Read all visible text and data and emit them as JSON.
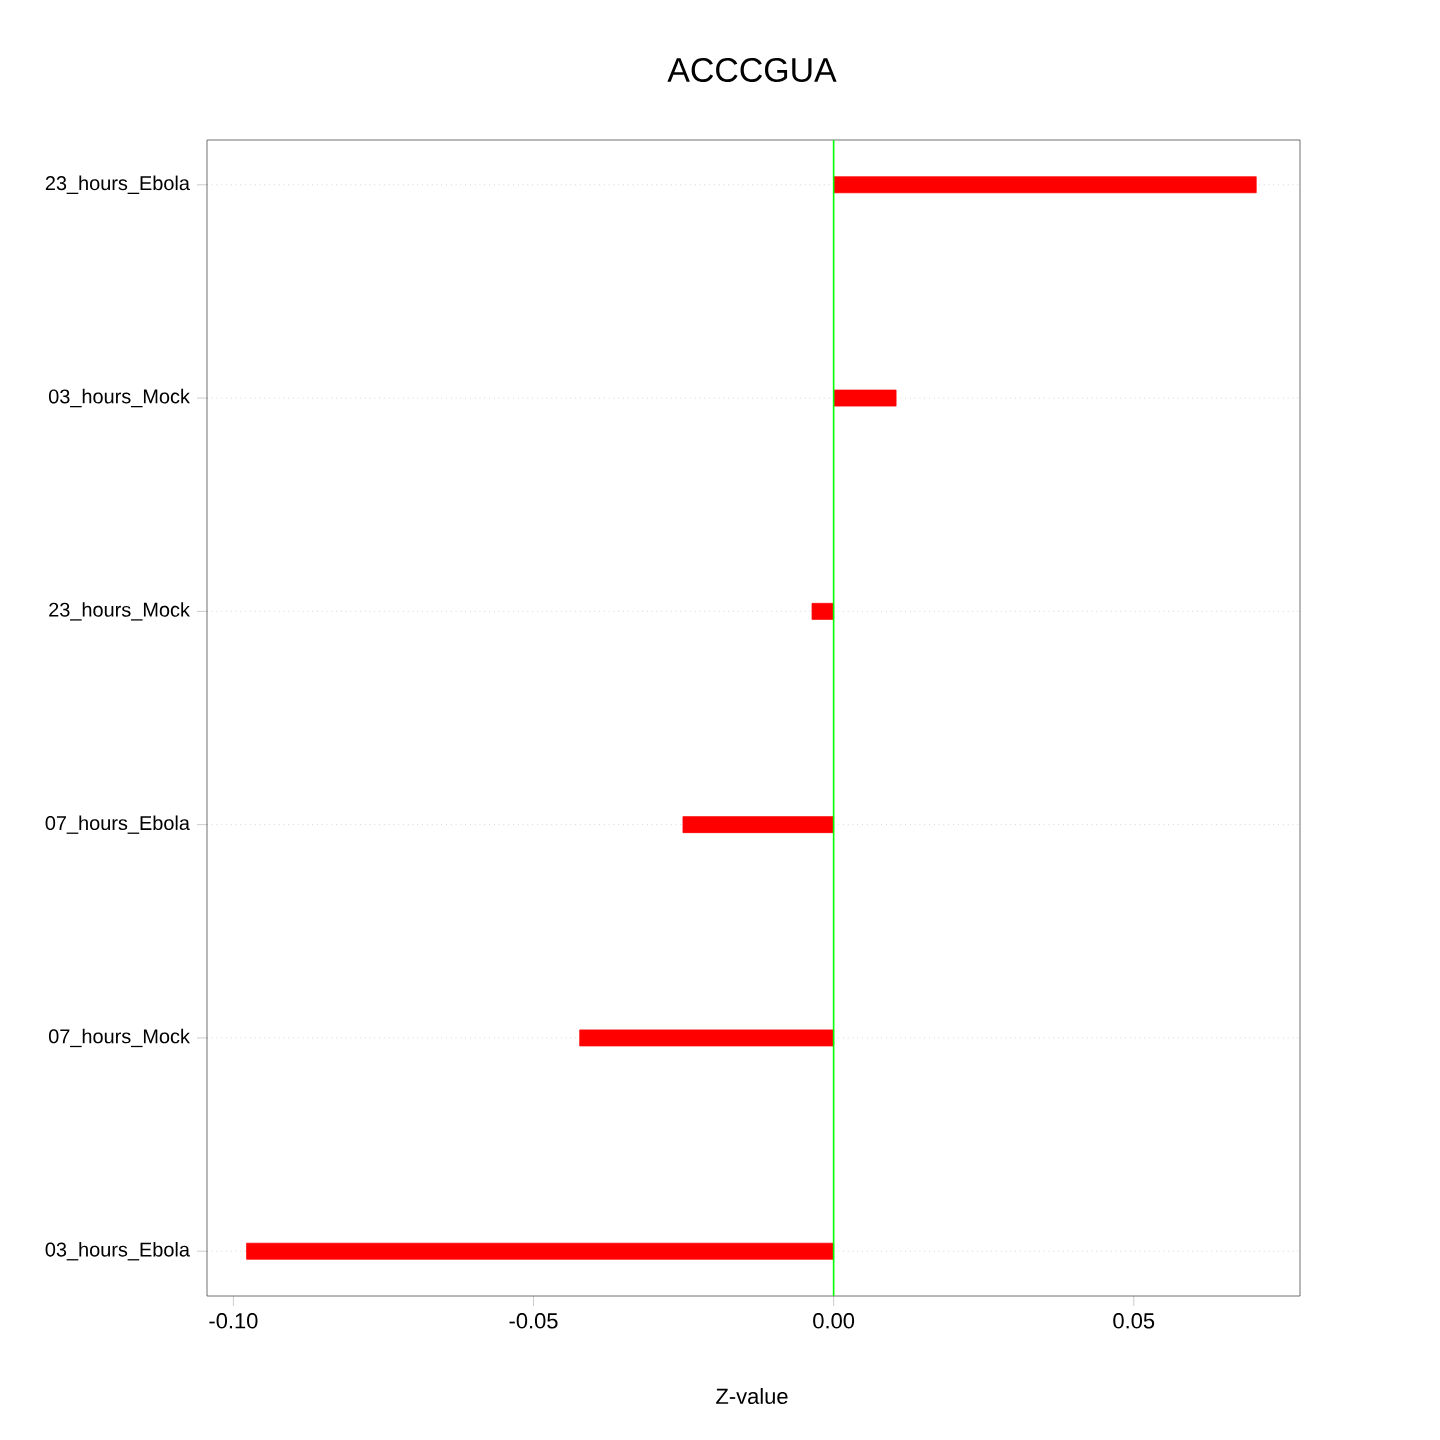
{
  "chart_data": {
    "type": "bar",
    "orientation": "horizontal",
    "title": "ACCCGUA",
    "xlabel": "Z-value",
    "categories": [
      "23_hours_Ebola",
      "03_hours_Mock",
      "23_hours_Mock",
      "07_hours_Ebola",
      "07_hours_Mock",
      "03_hours_Ebola"
    ],
    "values": [
      0.0704,
      0.0104,
      -0.0036,
      -0.0251,
      -0.0423,
      -0.0978
    ],
    "color": "#ff0000",
    "xlim": [
      -0.1044,
      0.0777
    ],
    "xticks": [
      {
        "value": -0.1,
        "label": "-0.10"
      },
      {
        "value": -0.05,
        "label": "-0.05"
      },
      {
        "value": 0,
        "label": "0.00"
      },
      {
        "value": 0.05,
        "label": "0.05"
      }
    ],
    "ref_lines": [
      {
        "axis": "x",
        "value": 0,
        "color": "#00ff00"
      }
    ],
    "grid": "y"
  }
}
